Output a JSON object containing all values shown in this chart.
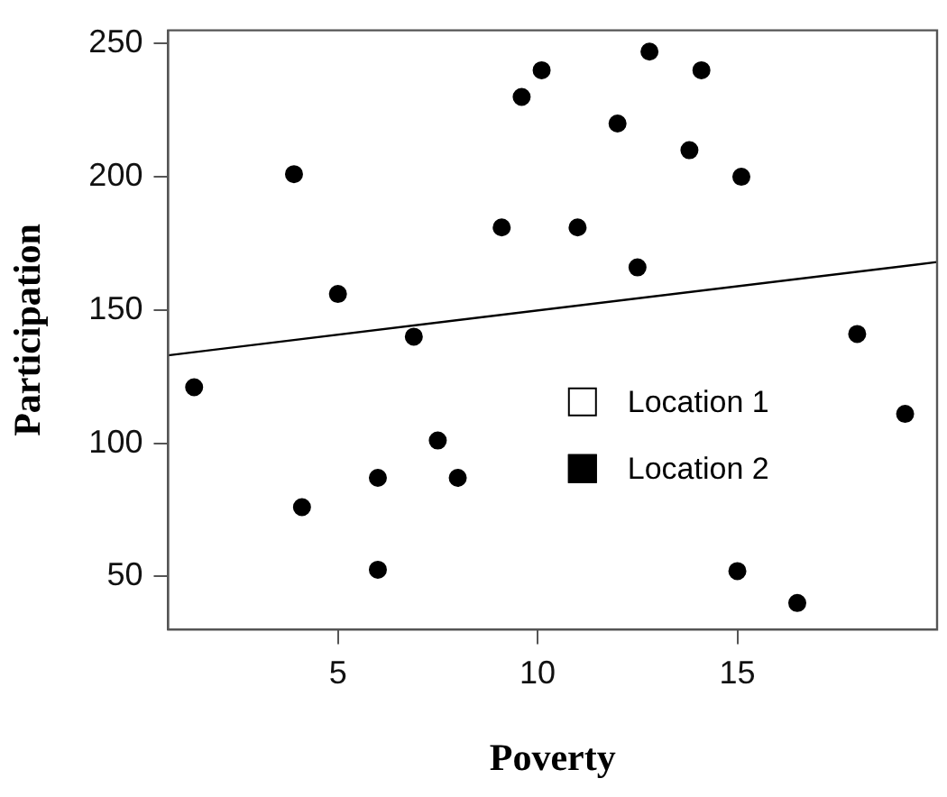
{
  "chart_data": {
    "type": "scatter",
    "xlabel": "Poverty",
    "ylabel": "Participation",
    "xlim": [
      0.75,
      20
    ],
    "ylim": [
      30,
      255
    ],
    "xticks": [
      5,
      10,
      15
    ],
    "yticks": [
      50,
      100,
      150,
      200,
      250
    ],
    "grid": false,
    "legend": "right",
    "series": [
      {
        "name": "Location 1",
        "color": "#000000"
      },
      {
        "name": "Location 2",
        "color": "#000000",
        "marker": "circle",
        "x": [
          3.9,
          5,
          6.9,
          9.1,
          9.6,
          10.1,
          11,
          12,
          12.5,
          12.8,
          13.8,
          14.1,
          15.1,
          18,
          1.4,
          4.1,
          6,
          6,
          7.5,
          8,
          15,
          16.5,
          19.2
        ],
        "values": [
          201,
          156,
          140,
          181,
          230,
          240,
          181,
          220,
          166,
          247,
          210,
          240,
          200,
          141,
          121,
          76,
          87,
          52.5,
          101,
          87,
          52,
          40,
          111
        ]
      },
      {
        "type": "line",
        "color": "#000000",
        "marker": "none",
        "x": [
          0.75,
          20
        ],
        "values": [
          133,
          168
        ]
      }
    ]
  }
}
